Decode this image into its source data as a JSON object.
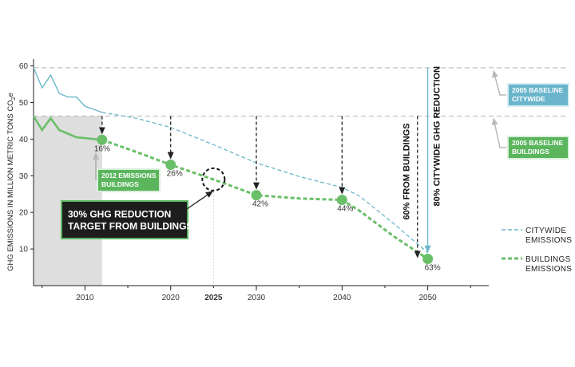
{
  "chart_data": {
    "type": "line",
    "ylabel": "GHG EMISSIONS IN MILLION METRIC TONS CO",
    "ylabel_sub": "2",
    "ylabel_tail": "e",
    "ylim": [
      0,
      61
    ],
    "xlim": [
      2004,
      2056
    ],
    "y_ticks": [
      10,
      20,
      30,
      40,
      50,
      60
    ],
    "x_ticks": [
      {
        "value": 2010,
        "label": "2010",
        "bold": false
      },
      {
        "value": 2020,
        "label": "2020",
        "bold": false
      },
      {
        "value": 2025,
        "label": "2025",
        "bold": true
      },
      {
        "value": 2030,
        "label": "2030",
        "bold": false
      },
      {
        "value": 2040,
        "label": "2040",
        "bold": false
      },
      {
        "value": 2050,
        "label": "2050",
        "bold": false
      }
    ],
    "historic_period": [
      2004,
      2012
    ],
    "reference_lines": [
      {
        "name": "2005 citywide baseline",
        "y": 59.5
      },
      {
        "name": "2005 buildings baseline",
        "y": 46.3
      }
    ],
    "series": [
      {
        "name": "CITYWIDE EMISSIONS",
        "color": "#6cb6cb",
        "historic": [
          [
            2004,
            59.5
          ],
          [
            2005,
            54
          ],
          [
            2006,
            57.5
          ],
          [
            2007,
            52.5
          ],
          [
            2008,
            51.5
          ],
          [
            2009,
            51.5
          ],
          [
            2010,
            49
          ],
          [
            2012,
            47.3
          ]
        ],
        "projected": [
          [
            2012,
            47.3
          ],
          [
            2016,
            45.7
          ],
          [
            2020,
            43.2
          ],
          [
            2025,
            38.5
          ],
          [
            2030,
            33.5
          ],
          [
            2035,
            29.8
          ],
          [
            2040,
            26.8
          ],
          [
            2042,
            24.5
          ],
          [
            2046,
            17
          ],
          [
            2050,
            9
          ]
        ]
      },
      {
        "name": "BUILDINGS EMISSIONS",
        "color": "#6abf69",
        "historic": [
          [
            2004,
            46.3
          ],
          [
            2005,
            42.5
          ],
          [
            2006,
            45.7
          ],
          [
            2007,
            42.5
          ],
          [
            2008,
            41.5
          ],
          [
            2009,
            40.5
          ],
          [
            2012,
            39.8
          ]
        ],
        "projected": [
          [
            2012,
            39.8
          ],
          [
            2016,
            36.5
          ],
          [
            2020,
            33
          ],
          [
            2025,
            29
          ],
          [
            2030,
            24.7
          ],
          [
            2035,
            23.8
          ],
          [
            2040,
            23.4
          ],
          [
            2042,
            20.5
          ],
          [
            2046,
            13.5
          ],
          [
            2050,
            7.3
          ]
        ]
      }
    ],
    "milestones": [
      {
        "year": 2012,
        "value": 39.8,
        "label": "16%"
      },
      {
        "year": 2020,
        "value": 33,
        "label": "26%"
      },
      {
        "year": 2030,
        "value": 24.7,
        "label": "42%"
      },
      {
        "year": 2040,
        "value": 23.4,
        "label": "44%"
      },
      {
        "year": 2050,
        "value": 7.3,
        "label": "63%"
      }
    ],
    "target_circle": {
      "year": 2025,
      "value": 29
    },
    "annotations": {
      "target_buildings": [
        "30% GHG REDUCTION",
        "TARGET FROM BUILDINGS"
      ],
      "emissions_2012": [
        "2012 EMISSIONS",
        "BUILDINGS"
      ],
      "baseline_citywide": [
        "2005 BASELINE",
        "CITYWIDE"
      ],
      "baseline_buildings": [
        "2005 BASELINE",
        "BUILDINGS"
      ],
      "from_buildings_60": "60% FROM BUILDINGS",
      "citywide_80": "80% CITYWIDE GHG REDUCTION"
    },
    "legend": [
      {
        "lines": [
          "CITYWIDE",
          "EMISSIONS"
        ],
        "color": "#6cb6cb",
        "style": "dashed-thin"
      },
      {
        "lines": [
          "BUILDINGS",
          "EMISSIONS"
        ],
        "color": "#6abf69",
        "style": "dashed-thick"
      }
    ],
    "legend_position": "right",
    "grid": false
  },
  "colors": {
    "citywide": "#6cb6cb",
    "buildings": "#6abf69",
    "shade": "#dedede",
    "box_green": "#5bb55d",
    "box_blue": "#6ab5cc",
    "box_dark": "#1d1d1d",
    "arrow": "#222222",
    "reference": "#b3b3b3",
    "label_arrow": "#b8b8b8"
  }
}
